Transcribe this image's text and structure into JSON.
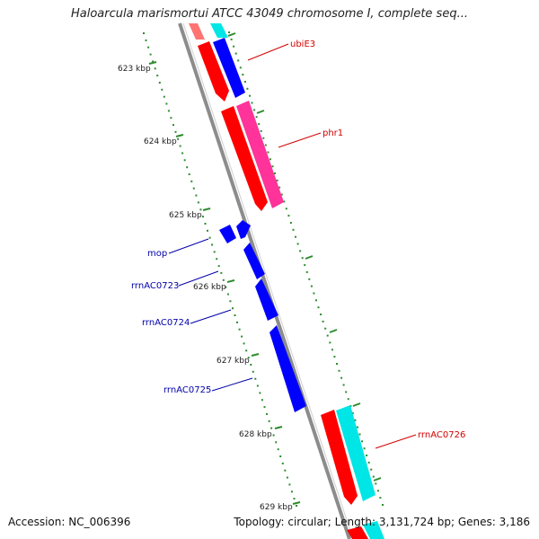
{
  "title": "Haloarcula marismortui ATCC 43049 chromosome I, complete seq...",
  "footer": {
    "accession": "Accession: NC_006396",
    "summary": "Topology: circular; Length: 3,131,724 bp; Genes: 3,186"
  },
  "colors": {
    "backbone": "#8c8c8c",
    "tick": "#2e8b2e",
    "red_gene": "#ff0000",
    "blue_gene": "#0000ff",
    "pink_gene": "#ff3399",
    "cyan_gene": "#00e5e5",
    "label_red": "#d40000",
    "label_blue": "#0000aa"
  },
  "scale": {
    "ticks": [
      "623 kbp",
      "624 kbp",
      "625 kbp",
      "626 kbp",
      "627 kbp",
      "628 kbp",
      "629 kbp"
    ]
  },
  "gene_labels": {
    "ubiE3": "ubiE3",
    "phr1": "phr1",
    "mop": "mop",
    "rrnAC0723": "rrnAC0723",
    "rrnAC0724": "rrnAC0724",
    "rrnAC0725": "rrnAC0725",
    "rrnAC0726": "rrnAC0726"
  }
}
